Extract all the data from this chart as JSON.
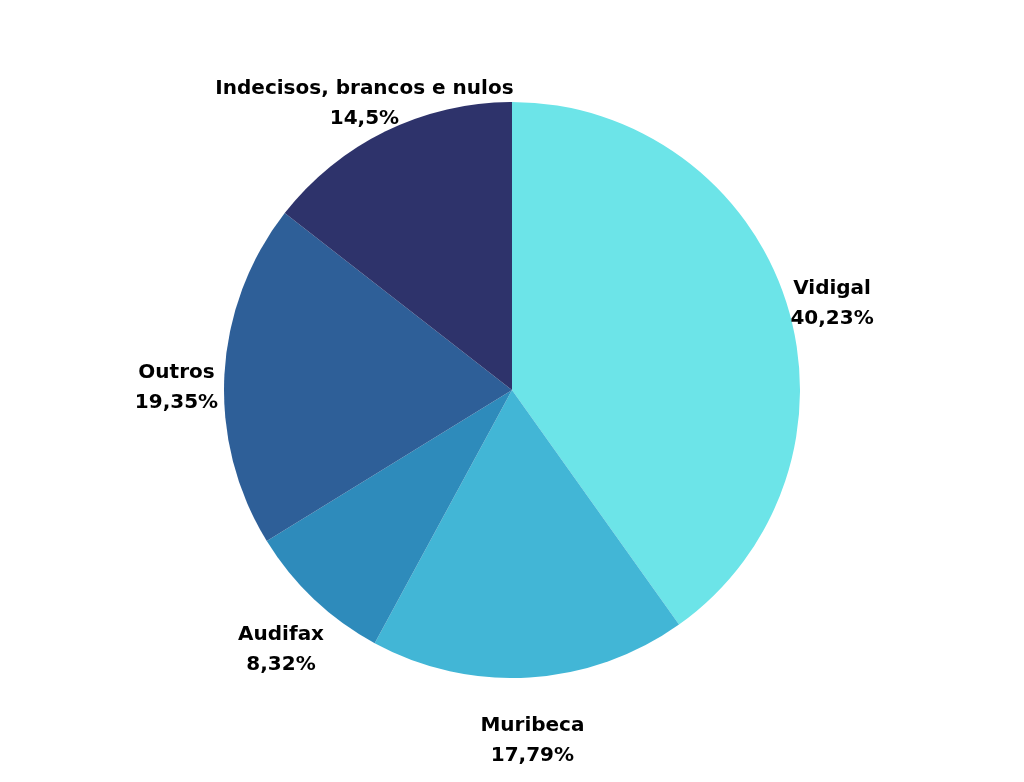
{
  "chart_data": {
    "type": "pie",
    "categories": [
      "Vidigal",
      "Muribeca",
      "Audifax",
      "Outros",
      "Indecisos, brancos e nulos"
    ],
    "values": [
      40.23,
      17.79,
      8.32,
      19.35,
      14.5
    ],
    "value_labels": [
      "40,23%",
      "17,79%",
      "8,32%",
      "19,35%",
      "14,5%"
    ],
    "colors": [
      "#6ce4e8",
      "#42b6d6",
      "#2e8bbb",
      "#2e5f98",
      "#2e336b"
    ]
  }
}
